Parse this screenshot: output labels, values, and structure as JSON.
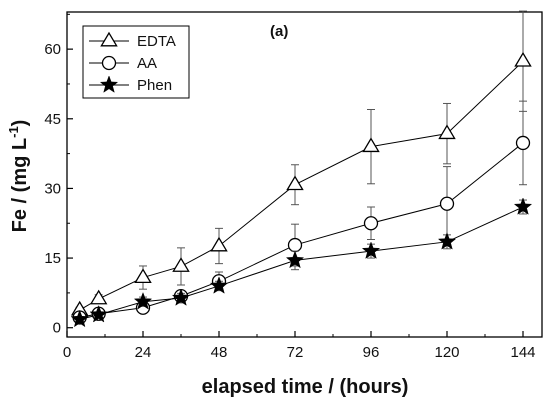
{
  "chart_data": {
    "type": "line",
    "panel_label": "(a)",
    "xlabel": "elapsed time / (hours)",
    "ylabel_main": "Fe / (mg L",
    "ylabel_sup": "-1",
    "ylabel_close": ")",
    "xlim": [
      0,
      150
    ],
    "ylim": [
      -2,
      68
    ],
    "xticks": [
      0,
      24,
      48,
      72,
      96,
      120,
      144
    ],
    "yticks": [
      0,
      15,
      30,
      45,
      60
    ],
    "legend_position": "top-left",
    "grid": false,
    "series": [
      {
        "name": "EDTA",
        "marker": "open-triangle",
        "x": [
          4,
          10,
          24,
          36,
          48,
          72,
          96,
          120,
          144
        ],
        "y": [
          3.8,
          6.2,
          10.8,
          13.2,
          17.6,
          30.8,
          39.0,
          41.8,
          57.4
        ],
        "yerr": [
          0.6,
          0.9,
          2.5,
          4.0,
          3.8,
          4.3,
          8.0,
          6.5,
          10.8
        ]
      },
      {
        "name": "AA",
        "marker": "open-circle",
        "x": [
          4,
          10,
          24,
          36,
          48,
          72,
          96,
          120,
          144
        ],
        "y": [
          2.2,
          3.0,
          4.3,
          6.8,
          10.0,
          17.8,
          22.5,
          26.7,
          39.8
        ],
        "yerr": [
          0.4,
          0.5,
          0.6,
          1.0,
          2.0,
          4.5,
          3.5,
          8.0,
          9.0
        ]
      },
      {
        "name": "Phen",
        "marker": "filled-star",
        "x": [
          4,
          10,
          24,
          36,
          48,
          72,
          96,
          120,
          144
        ],
        "y": [
          1.8,
          2.8,
          5.6,
          6.4,
          9.0,
          14.5,
          16.5,
          18.5,
          26.0
        ],
        "yerr": [
          0.4,
          0.6,
          1.0,
          1.0,
          1.0,
          2.0,
          1.5,
          1.5,
          1.5
        ]
      }
    ]
  }
}
